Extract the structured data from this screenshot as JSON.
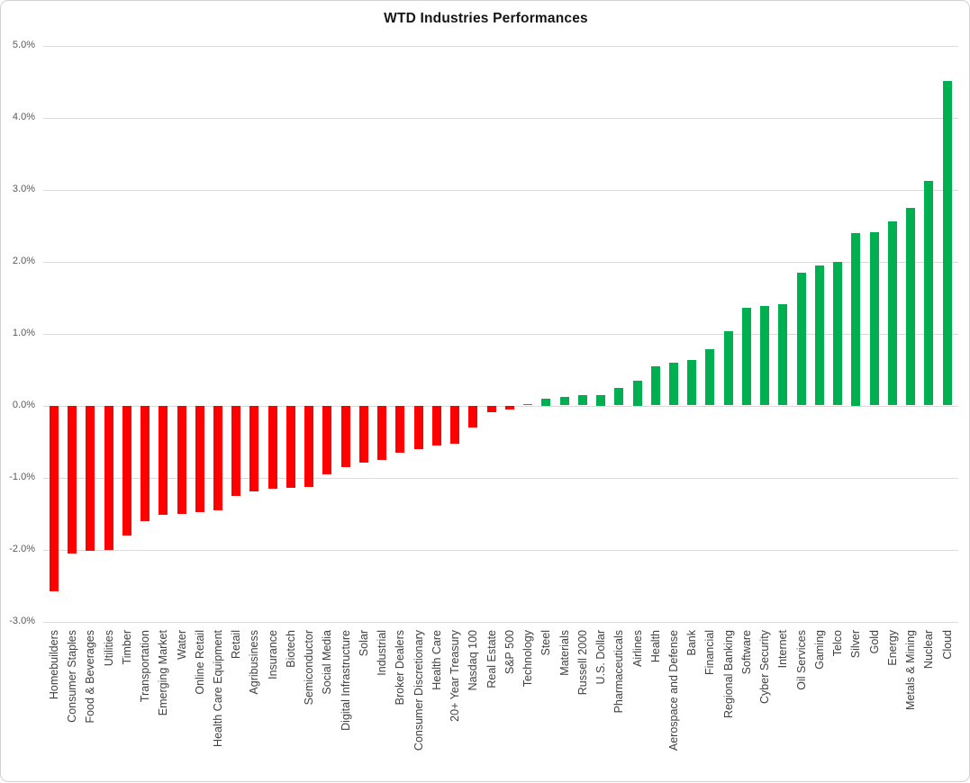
{
  "title": "WTD Industries Performances",
  "colors": {
    "positive_bar": "#00B050",
    "negative_bar": "#FF0000",
    "gridline": "#D9D9D9",
    "axis_text": "#595959",
    "title_text": "#151515"
  },
  "chart_data": {
    "type": "bar",
    "title": "WTD Industries Performances",
    "xlabel": "",
    "ylabel": "",
    "ylim": [
      -3.0,
      5.0
    ],
    "grid": true,
    "legend": false,
    "bar_color_rule": "green if positive, red if negative",
    "yticks": [
      {
        "label": "5.0%",
        "value": 5
      },
      {
        "label": "4.0%",
        "value": 4
      },
      {
        "label": "3.0%",
        "value": 3
      },
      {
        "label": "2.0%",
        "value": 2
      },
      {
        "label": "1.0%",
        "value": 1
      },
      {
        "label": "0.0%",
        "value": 0
      },
      {
        "label": "-1.0%",
        "value": -1
      },
      {
        "label": "-2.0%",
        "value": -2
      },
      {
        "label": "-3.0%",
        "value": -3
      }
    ],
    "categories": [
      "Homebuilders",
      "Consumer Staples",
      "Food & Beverages",
      "Utilities",
      "Timber",
      "Transportation",
      "Emerging Market",
      "Water",
      "Online Retail",
      "Health Care Equipment",
      "Retail",
      "Agribusiness",
      "Insurance",
      "Biotech",
      "Semiconductor",
      "Social Media",
      "Digital Infrastructure",
      "Solar",
      "Industrial",
      "Broker Dealers",
      "Consumer Discretionary",
      "Health Care",
      "20+ Year Treasury",
      "Nasdaq 100",
      "Real Estate",
      "S&P 500",
      "Technology",
      "Steel",
      "Materials",
      "Russell 2000",
      "U.S. Dollar",
      "Pharmaceuticals",
      "Airlines",
      "Health",
      "Aerospace and Defense",
      "Bank",
      "Financial",
      "Regional Banking",
      "Software",
      "Cyber Security",
      "Internet",
      "Oil Services",
      "Gaming",
      "Telco",
      "Silver",
      "Gold",
      "Energy",
      "Metals & Mining",
      "Nuclear",
      "Cloud"
    ],
    "values": [
      -2.58,
      -2.05,
      -2.02,
      -2.0,
      -1.8,
      -1.61,
      -1.52,
      -1.5,
      -1.48,
      -1.45,
      -1.26,
      -1.19,
      -1.16,
      -1.14,
      -1.13,
      -0.96,
      -0.85,
      -0.79,
      -0.75,
      -0.66,
      -0.6,
      -0.55,
      -0.53,
      -0.3,
      -0.09,
      -0.05,
      0.02,
      0.1,
      0.12,
      0.14,
      0.15,
      0.24,
      0.35,
      0.54,
      0.59,
      0.63,
      0.78,
      1.03,
      1.36,
      1.38,
      1.41,
      1.84,
      1.94,
      1.99,
      2.4,
      2.41,
      2.56,
      2.74,
      3.12,
      4.51
    ]
  }
}
